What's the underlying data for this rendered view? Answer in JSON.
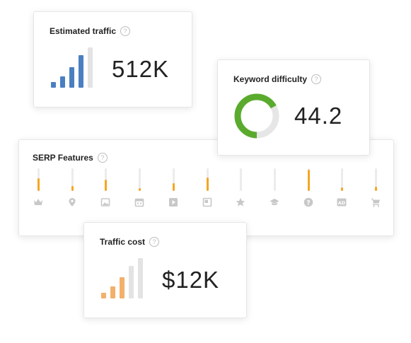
{
  "estimated_traffic": {
    "title": "Estimated traffic",
    "help": "?",
    "value": "512K",
    "bar_color": "#4a7fc1",
    "muted_color": "#e3e3e3",
    "bar_levels": [
      0.14,
      0.28,
      0.5,
      0.8,
      1.0
    ],
    "active_bars": 4
  },
  "keyword_difficulty": {
    "title": "Keyword difficulty",
    "help": "?",
    "value": "44.2",
    "ring_color": "#5aab2d",
    "ring_track_color": "#e6e6e6",
    "fraction": 0.67
  },
  "serp_features": {
    "title": "SERP Features",
    "help": "?",
    "fill_color": "#f5a623",
    "icon_color": "#c8c8c8",
    "items": [
      {
        "icon": "crown-icon",
        "level": 0.55
      },
      {
        "icon": "map-pin-icon",
        "level": 0.22
      },
      {
        "icon": "image-icon",
        "level": 0.5
      },
      {
        "icon": "calendar-icon",
        "level": 0.12
      },
      {
        "icon": "video-play-icon",
        "level": 0.35
      },
      {
        "icon": "square-card-icon",
        "level": 0.6
      },
      {
        "icon": "star-icon",
        "level": 0.0
      },
      {
        "icon": "graduation-cap-icon",
        "level": 0.0
      },
      {
        "icon": "question-icon",
        "level": 0.95
      },
      {
        "icon": "ad-badge-icon",
        "level": 0.15,
        "text": "AD"
      },
      {
        "icon": "shopping-cart-icon",
        "level": 0.2
      }
    ]
  },
  "traffic_cost": {
    "title": "Traffic cost",
    "help": "?",
    "value": "$12K",
    "bar_color": "#f2b06a",
    "muted_color": "#e3e3e3",
    "bar_levels": [
      0.14,
      0.3,
      0.52,
      0.8,
      1.0
    ],
    "active_bars": 3
  }
}
